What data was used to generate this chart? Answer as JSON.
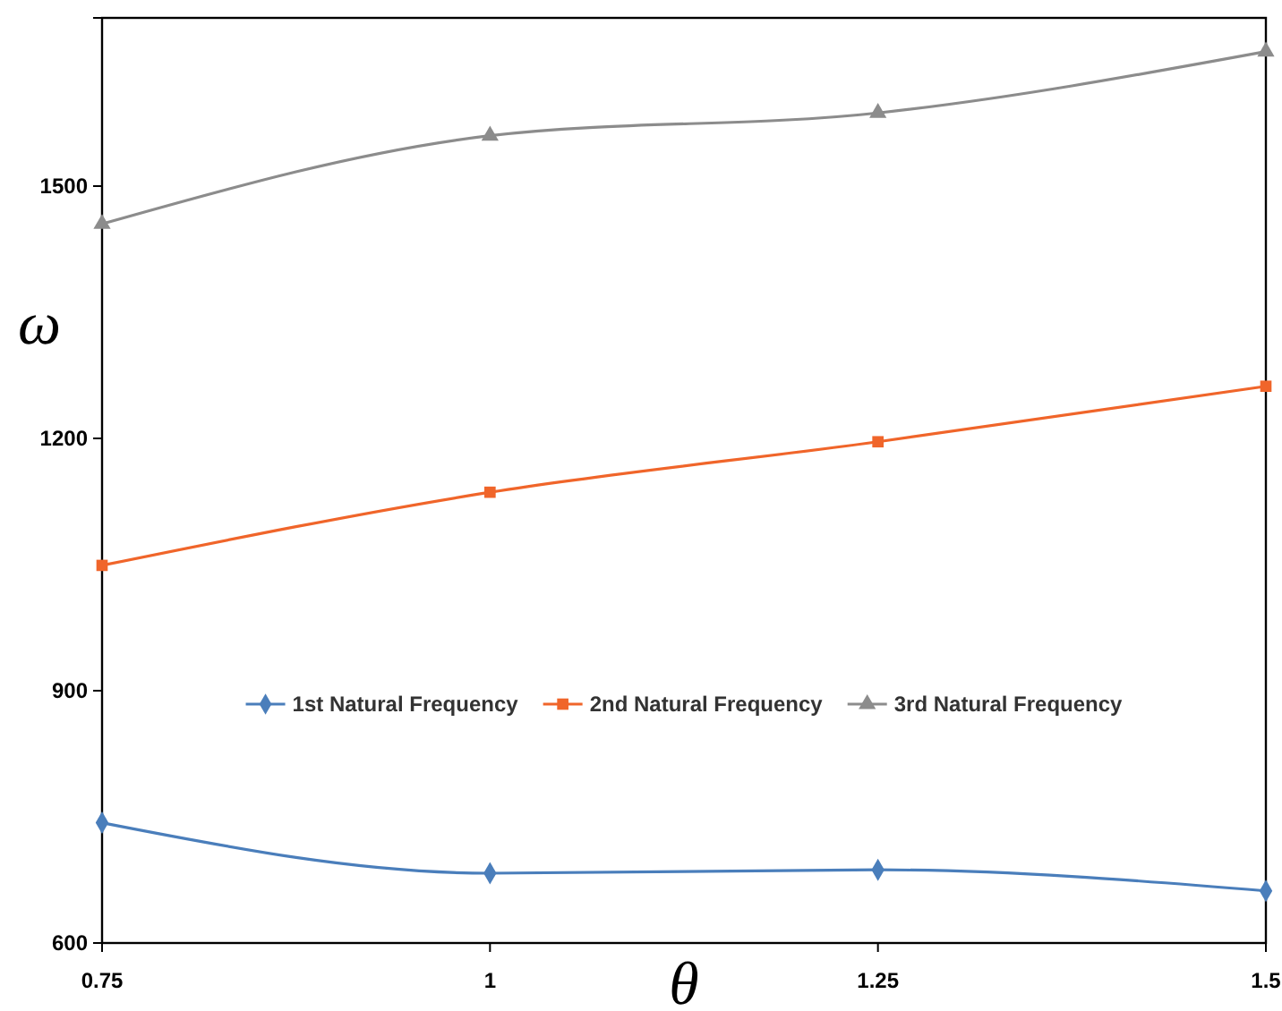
{
  "chart_data": {
    "type": "line",
    "xlabel": "θ",
    "ylabel": "ω",
    "x": [
      0.75,
      1,
      1.25,
      1.5
    ],
    "xlim": [
      0.75,
      1.5
    ],
    "xticks": [
      0.75,
      1,
      1.25,
      1.5
    ],
    "ylim": [
      600,
      1700
    ],
    "yticks": [
      600,
      900,
      1200,
      1500
    ],
    "grid": false,
    "legend": "center",
    "line_style": "solid",
    "series": [
      {
        "name": "1st Natural Frequency",
        "color": "#4a7ebb",
        "marker": "diamond",
        "values": [
          743,
          683,
          687,
          662
        ]
      },
      {
        "name": "2nd Natural Frequency",
        "color": "#f0652a",
        "marker": "square",
        "values": [
          1049,
          1136,
          1196,
          1262
        ]
      },
      {
        "name": "3rd Natural Frequency",
        "color": "#8c8c8c",
        "marker": "triangle",
        "values": [
          1455,
          1560,
          1587,
          1660
        ]
      }
    ]
  }
}
